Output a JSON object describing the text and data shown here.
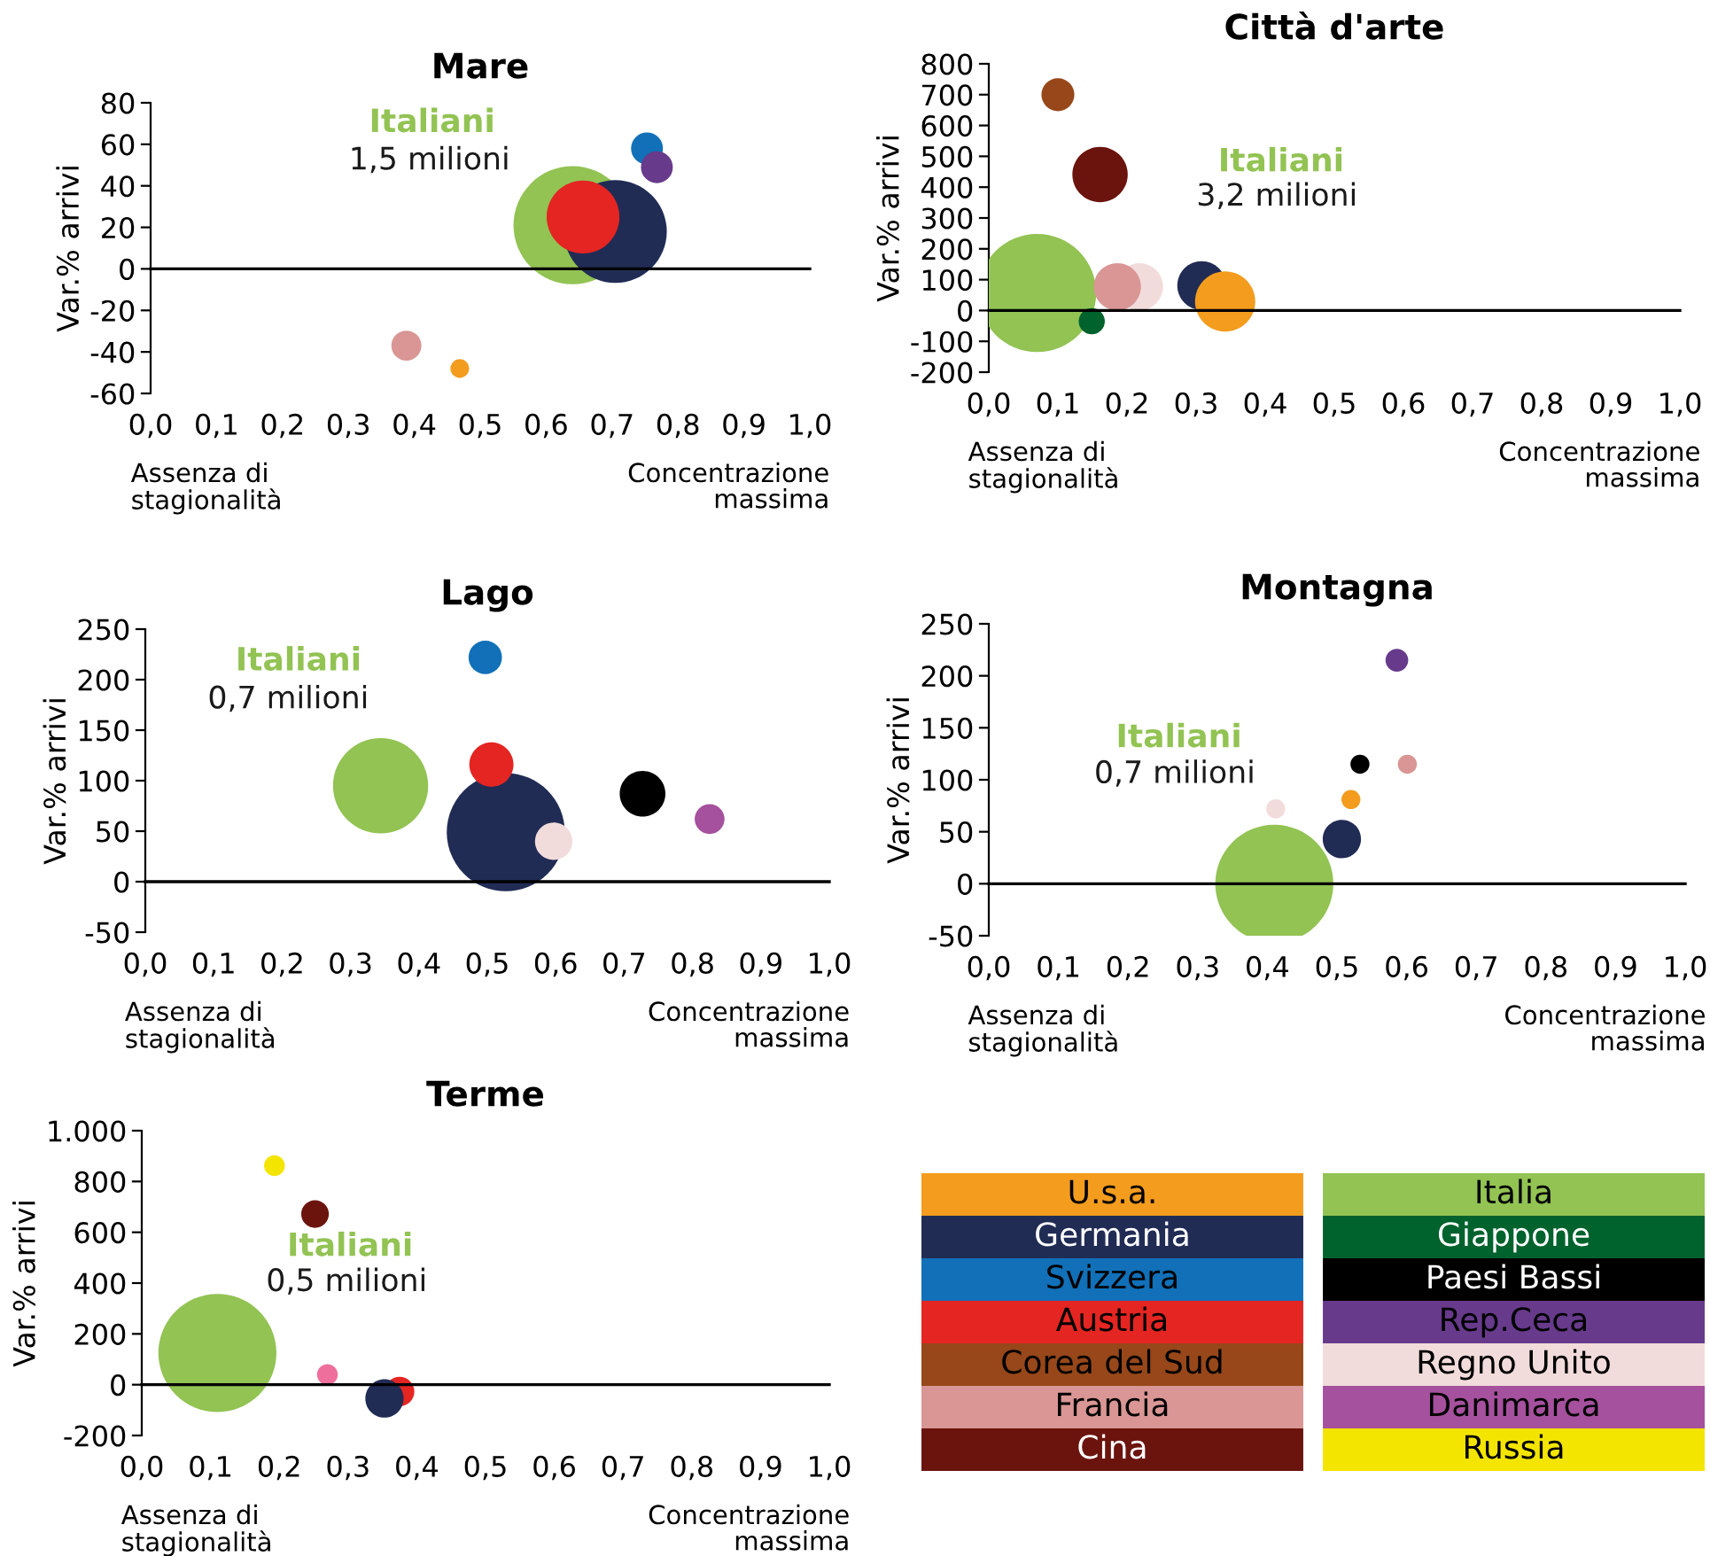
{
  "chart_data": [
    {
      "type": "bubble",
      "title": "Mare",
      "ylabel": "Var.% arrivi",
      "xlim": [
        0,
        1
      ],
      "ylim": [
        -60,
        80
      ],
      "yticks": [
        -60,
        -40,
        -20,
        0,
        20,
        40,
        60,
        80
      ],
      "xticks": [
        {
          "value": 0,
          "label": "0,0"
        },
        {
          "value": 0.1,
          "label": "0,1"
        },
        {
          "value": 0.2,
          "label": "0,2"
        },
        {
          "value": 0.3,
          "label": "0,3"
        },
        {
          "value": 0.4,
          "label": "0,4"
        },
        {
          "value": 0.5,
          "label": "0,5"
        },
        {
          "value": 0.6,
          "label": "0,6"
        },
        {
          "value": 0.7,
          "label": "0,7"
        },
        {
          "value": 0.8,
          "label": "0,8"
        },
        {
          "value": 0.9,
          "label": "0,9"
        },
        {
          "value": 1,
          "label": "1,0"
        }
      ],
      "series": [
        {
          "color": "#92c353",
          "x": [
            0.64
          ],
          "values": [
            21
          ],
          "sizes": [
            1
          ]
        },
        {
          "color": "#212c55",
          "x": [
            0.705
          ],
          "values": [
            18
          ],
          "sizes": [
            0.76
          ]
        },
        {
          "color": "#e42522",
          "x": [
            0.656
          ],
          "values": [
            25
          ],
          "sizes": [
            0.38
          ]
        },
        {
          "color": "#1170b8",
          "x": [
            0.753
          ],
          "values": [
            58
          ],
          "sizes": [
            0.073
          ]
        },
        {
          "color": "#673a8b",
          "x": [
            0.768
          ],
          "values": [
            49
          ],
          "sizes": [
            0.073
          ]
        },
        {
          "color": "#d99694",
          "x": [
            0.388
          ],
          "values": [
            -37
          ],
          "sizes": [
            0.065
          ]
        },
        {
          "color": "#f39c1e",
          "x": [
            0.469
          ],
          "values": [
            -48
          ],
          "sizes": [
            0.025
          ]
        }
      ],
      "annotations": [
        "Italiani",
        "1,5 milioni",
        "Assenza di\nstagionalità",
        "Concentrazione\nmassima"
      ]
    },
    {
      "type": "bubble",
      "title": "Città d'arte",
      "ylabel": "Var.% arrivi",
      "xlim": [
        0,
        1
      ],
      "ylim": [
        -200,
        800
      ],
      "yticks": [
        -200,
        -100,
        0,
        100,
        200,
        300,
        400,
        500,
        600,
        700,
        800
      ],
      "xticks": [
        {
          "value": 0,
          "label": "0,0"
        },
        {
          "value": 0.1,
          "label": "0,1"
        },
        {
          "value": 0.2,
          "label": "0,2"
        },
        {
          "value": 0.3,
          "label": "0,3"
        },
        {
          "value": 0.4,
          "label": "0,4"
        },
        {
          "value": 0.5,
          "label": "0,5"
        },
        {
          "value": 0.6,
          "label": "0,6"
        },
        {
          "value": 0.7,
          "label": "0,7"
        },
        {
          "value": 0.8,
          "label": "0,8"
        },
        {
          "value": 0.9,
          "label": "0,9"
        },
        {
          "value": 1,
          "label": "1,0"
        }
      ],
      "series": [
        {
          "color": "#92c353",
          "x": [
            0.07
          ],
          "values": [
            57
          ],
          "sizes": [
            1
          ]
        },
        {
          "color": "#974719",
          "x": [
            0.1
          ],
          "values": [
            700
          ],
          "sizes": [
            0.078
          ]
        },
        {
          "color": "#6b140e",
          "x": [
            0.161
          ],
          "values": [
            441
          ],
          "sizes": [
            0.22
          ]
        },
        {
          "color": "#f2dcdb",
          "x": [
            0.218
          ],
          "values": [
            77
          ],
          "sizes": [
            0.16
          ]
        },
        {
          "color": "#d99694",
          "x": [
            0.186
          ],
          "values": [
            77
          ],
          "sizes": [
            0.16
          ]
        },
        {
          "color": "#00622d",
          "x": [
            0.149
          ],
          "values": [
            -35
          ],
          "sizes": [
            0.049
          ]
        },
        {
          "color": "#212c55",
          "x": [
            0.308
          ],
          "values": [
            81
          ],
          "sizes": [
            0.17
          ]
        },
        {
          "color": "#f39c1e",
          "x": [
            0.342
          ],
          "values": [
            29
          ],
          "sizes": [
            0.26
          ]
        }
      ],
      "annotations": [
        "Italiani",
        "3,2 milioni",
        "Assenza di\nstagionalità",
        "Concentrazione\nmassima"
      ]
    },
    {
      "type": "bubble",
      "title": "Lago",
      "ylabel": "Var.% arrivi",
      "xlim": [
        0,
        1
      ],
      "ylim": [
        -50,
        250
      ],
      "yticks": [
        -50,
        0,
        50,
        100,
        150,
        200,
        250
      ],
      "xticks": [
        {
          "value": 0,
          "label": "0,0"
        },
        {
          "value": 0.1,
          "label": "0,1"
        },
        {
          "value": 0.2,
          "label": "0,2"
        },
        {
          "value": 0.3,
          "label": "0,3"
        },
        {
          "value": 0.4,
          "label": "0,4"
        },
        {
          "value": 0.5,
          "label": "0,5"
        },
        {
          "value": 0.6,
          "label": "0,6"
        },
        {
          "value": 0.7,
          "label": "0,7"
        },
        {
          "value": 0.8,
          "label": "0,8"
        },
        {
          "value": 0.9,
          "label": "0,9"
        },
        {
          "value": 1,
          "label": "1,0"
        }
      ],
      "series": [
        {
          "color": "#92c353",
          "x": [
            0.344
          ],
          "values": [
            95
          ],
          "sizes": [
            0.65
          ]
        },
        {
          "color": "#212c55",
          "x": [
            0.527
          ],
          "values": [
            49
          ],
          "sizes": [
            1
          ]
        },
        {
          "color": "#1170b8",
          "x": [
            0.497
          ],
          "values": [
            222
          ],
          "sizes": [
            0.08
          ]
        },
        {
          "color": "#e42522",
          "x": [
            0.506
          ],
          "values": [
            116
          ],
          "sizes": [
            0.14
          ]
        },
        {
          "color": "#f2dcdb",
          "x": [
            0.597
          ],
          "values": [
            40
          ],
          "sizes": [
            0.1
          ]
        },
        {
          "color": "#000000",
          "x": [
            0.727
          ],
          "values": [
            87
          ],
          "sizes": [
            0.15
          ]
        },
        {
          "color": "#a5519d",
          "x": [
            0.825
          ],
          "values": [
            62
          ],
          "sizes": [
            0.064
          ]
        }
      ],
      "annotations": [
        "Italiani",
        "0,7 milioni",
        "Assenza di\nstagionalità",
        "Concentrazione\nmassima"
      ]
    },
    {
      "type": "bubble",
      "title": "Montagna",
      "ylabel": "Var.% arrivi",
      "xlim": [
        0,
        1
      ],
      "ylim": [
        -50,
        250
      ],
      "yticks": [
        -50,
        0,
        50,
        100,
        150,
        200,
        250
      ],
      "xticks": [
        {
          "value": 0,
          "label": "0,0"
        },
        {
          "value": 0.1,
          "label": "0,1"
        },
        {
          "value": 0.2,
          "label": "0,2"
        },
        {
          "value": 0.3,
          "label": "0,3"
        },
        {
          "value": 0.4,
          "label": "0,4"
        },
        {
          "value": 0.5,
          "label": "0,5"
        },
        {
          "value": 0.6,
          "label": "0,6"
        },
        {
          "value": 0.7,
          "label": "0,7"
        },
        {
          "value": 0.8,
          "label": "0,8"
        },
        {
          "value": 0.9,
          "label": "0,9"
        },
        {
          "value": 1,
          "label": "1,0"
        }
      ],
      "series": [
        {
          "color": "#92c353",
          "x": [
            0.41
          ],
          "values": [
            0
          ],
          "sizes": [
            1
          ]
        },
        {
          "color": "#212c55",
          "x": [
            0.507
          ],
          "values": [
            43
          ],
          "sizes": [
            0.105
          ]
        },
        {
          "color": "#f2dcdb",
          "x": [
            0.412
          ],
          "values": [
            72
          ],
          "sizes": [
            0.026
          ]
        },
        {
          "color": "#f39c1e",
          "x": [
            0.52
          ],
          "values": [
            81
          ],
          "sizes": [
            0.026
          ]
        },
        {
          "color": "#000000",
          "x": [
            0.533
          ],
          "values": [
            115
          ],
          "sizes": [
            0.026
          ]
        },
        {
          "color": "#d99694",
          "x": [
            0.601
          ],
          "values": [
            115
          ],
          "sizes": [
            0.026
          ]
        },
        {
          "color": "#673a8b",
          "x": [
            0.586
          ],
          "values": [
            215
          ],
          "sizes": [
            0.037
          ]
        }
      ],
      "annotations": [
        "Italiani",
        "0,7 milioni",
        "Assenza di\nstagionalità",
        "Concentrazione\nmassima"
      ]
    },
    {
      "type": "bubble",
      "title": "Terme",
      "ylabel": "Var.% arrivi",
      "xlim": [
        0,
        1
      ],
      "ylim": [
        -200,
        1000
      ],
      "yticks": [
        -200,
        0,
        200,
        400,
        600,
        800,
        {
          "value": 1000,
          "label": "1.000"
        }
      ],
      "xticks": [
        {
          "value": 0,
          "label": "0,0"
        },
        {
          "value": 0.1,
          "label": "0,1"
        },
        {
          "value": 0.2,
          "label": "0,2"
        },
        {
          "value": 0.3,
          "label": "0,3"
        },
        {
          "value": 0.4,
          "label": "0,4"
        },
        {
          "value": 0.5,
          "label": "0,5"
        },
        {
          "value": 0.6,
          "label": "0,6"
        },
        {
          "value": 0.7,
          "label": "0,7"
        },
        {
          "value": 0.8,
          "label": "0,8"
        },
        {
          "value": 0.9,
          "label": "0,9"
        },
        {
          "value": 1,
          "label": "1,0"
        }
      ],
      "series": [
        {
          "color": "#92c353",
          "x": [
            0.11
          ],
          "values": [
            125
          ],
          "sizes": [
            1
          ]
        },
        {
          "color": "#f3e500",
          "x": [
            0.193
          ],
          "values": [
            862
          ],
          "sizes": [
            0.031
          ]
        },
        {
          "color": "#6b140e",
          "x": [
            0.252
          ],
          "values": [
            672
          ],
          "sizes": [
            0.055
          ]
        },
        {
          "color": "#ef6f9c",
          "x": [
            0.27
          ],
          "values": [
            40
          ],
          "sizes": [
            0.031
          ]
        },
        {
          "color": "#e42522",
          "x": [
            0.375
          ],
          "values": [
            -27
          ],
          "sizes": [
            0.0625
          ]
        },
        {
          "color": "#212c55",
          "x": [
            0.353
          ],
          "values": [
            -54
          ],
          "sizes": [
            0.105
          ]
        }
      ],
      "annotations": [
        "Italiani",
        "0,5 milioni",
        "Assenza di\nstagionalità",
        "Concentrazione\nmassima"
      ]
    },
    {
      "type": "other",
      "categories": [
        "U.s.a.",
        "Germania",
        "Svizzera",
        "Austria",
        "Corea del Sud",
        "Francia",
        "Cina",
        "Italia",
        "Giappone",
        "Paesi Bassi",
        "Rep.Ceca",
        "Regno Unito",
        "Danimarca",
        "Russia"
      ],
      "colors": [
        "#f39c1e",
        "#212c55",
        "#1170b8",
        "#e42522",
        "#974719",
        "#d99694",
        "#6b140e",
        "#92c353",
        "#00622d",
        "#000000",
        "#673a8b",
        "#f2dcdb",
        "#a5519d",
        "#f3e500"
      ]
    }
  ]
}
